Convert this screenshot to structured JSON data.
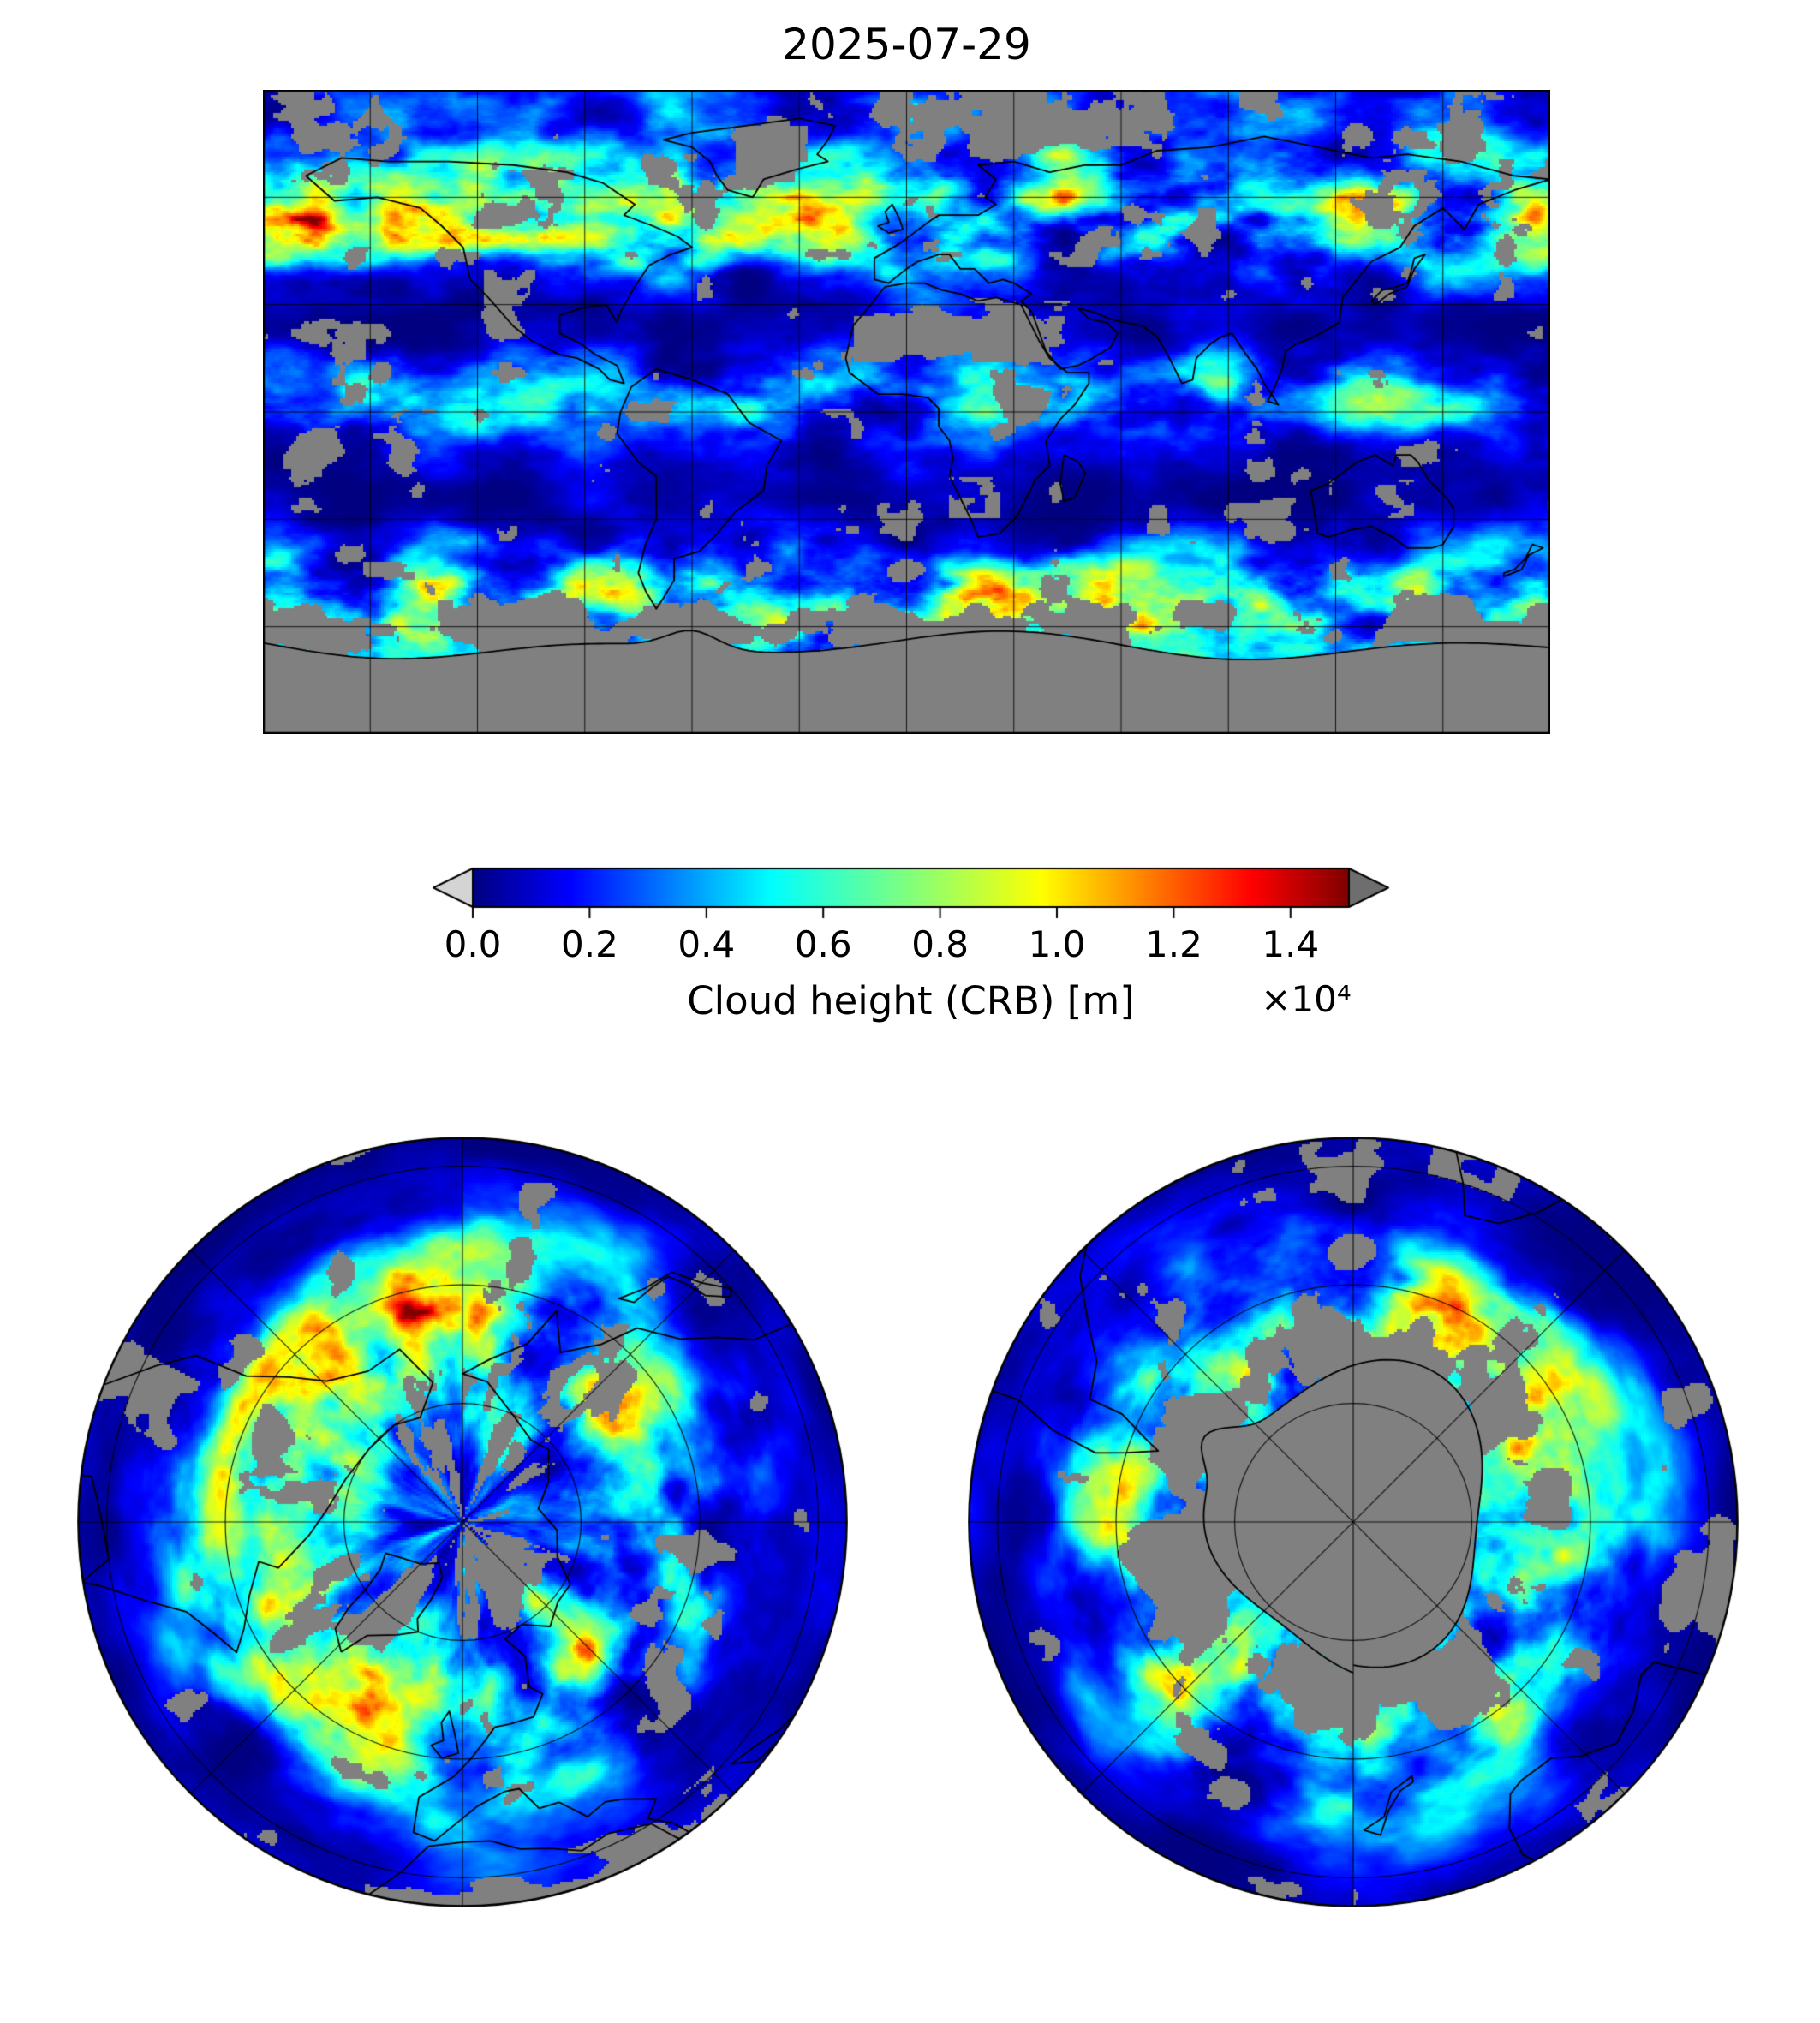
{
  "title": "2025-07-29",
  "colorbar": {
    "label": "Cloud height (CRB) [m]",
    "offset": "×10⁴",
    "ticks": [
      "0.0",
      "0.2",
      "0.4",
      "0.6",
      "0.8",
      "1.0",
      "1.2",
      "1.4"
    ],
    "under_color": "#d4d4d4",
    "over_color": "#6e6e6e"
  },
  "chart_data": {
    "type": "heatmap",
    "title": "2025-07-29",
    "variable": "Cloud height (CRB) [m]",
    "scale_factor_text": "×10⁴",
    "colorbar_ticks": [
      0.0,
      0.2,
      0.4,
      0.6,
      0.8,
      1.0,
      1.2,
      1.4
    ],
    "colorbar_range": [
      0,
      1.5
    ],
    "colorbar_units": "m",
    "value_range_m": [
      0,
      15000
    ],
    "colormap": "jet",
    "missing_data_color": "#808080",
    "coastline_color": "#000000",
    "grid_on": true,
    "colormap_stops": [
      {
        "t": 0.0,
        "c": "#000080"
      },
      {
        "t": 0.11,
        "c": "#0000ff"
      },
      {
        "t": 0.34,
        "c": "#00ffff"
      },
      {
        "t": 0.65,
        "c": "#ffff00"
      },
      {
        "t": 0.89,
        "c": "#ff0000"
      },
      {
        "t": 1.0,
        "c": "#800000"
      }
    ],
    "panels": [
      {
        "name": "global-map",
        "projection": "equirectangular",
        "lon_range": [
          -180,
          180
        ],
        "lat_range": [
          -90,
          90
        ],
        "grid_step_deg": 30
      },
      {
        "name": "north-polar-map",
        "projection": "north-polar-azimuthal",
        "lat_limit": 25,
        "grid_lat_circles": [
          70,
          50,
          30
        ],
        "grid_lon_step_deg": 45
      },
      {
        "name": "south-polar-map",
        "projection": "south-polar-azimuthal",
        "lat_limit": -25,
        "grid_lat_circles": [
          -70,
          -50,
          -30
        ],
        "grid_lon_step_deg": 45
      }
    ]
  }
}
